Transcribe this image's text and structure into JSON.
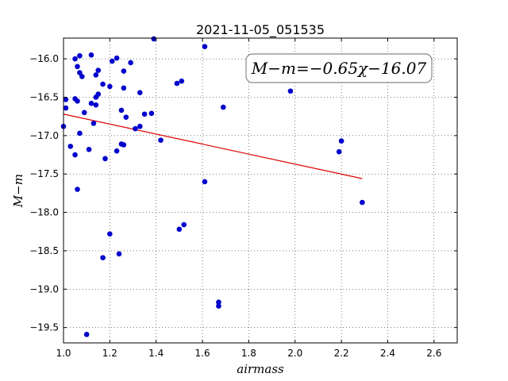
{
  "chart_data": {
    "type": "scatter",
    "title": "2021-11-05_051535",
    "xlabel": "airmass",
    "ylabel": "M−m",
    "xlim": [
      1.0,
      2.7
    ],
    "ylim": [
      -19.7,
      -15.73
    ],
    "y_inverted": true,
    "grid": true,
    "xticks": [
      1.0,
      1.2,
      1.4,
      1.6,
      1.8,
      2.0,
      2.2,
      2.4,
      2.6
    ],
    "xtick_labels": [
      "1.0",
      "1.2",
      "1.4",
      "1.6",
      "1.8",
      "2.0",
      "2.2",
      "2.4",
      "2.6"
    ],
    "yticks": [
      -16.0,
      -16.5,
      -17.0,
      -17.5,
      -18.0,
      -18.5,
      -19.0,
      -19.5
    ],
    "ytick_labels": [
      "−16.0",
      "−16.5",
      "−17.0",
      "−17.5",
      "−18.0",
      "−18.5",
      "−19.0",
      "−19.5"
    ],
    "annotation": "M−m=−0.65χ−16.07",
    "colors": {
      "points": "#0000cc",
      "fit_line": "#dd0000"
    },
    "fit_line": {
      "x": [
        1.0,
        2.29
      ],
      "y": [
        -16.72,
        -17.56
      ]
    },
    "points": [
      {
        "x": 1.0,
        "y": -16.88
      },
      {
        "x": 1.01,
        "y": -16.53
      },
      {
        "x": 1.01,
        "y": -16.64
      },
      {
        "x": 1.03,
        "y": -17.14
      },
      {
        "x": 1.05,
        "y": -16.0
      },
      {
        "x": 1.05,
        "y": -16.52
      },
      {
        "x": 1.05,
        "y": -17.25
      },
      {
        "x": 1.06,
        "y": -16.1
      },
      {
        "x": 1.06,
        "y": -16.55
      },
      {
        "x": 1.06,
        "y": -17.7
      },
      {
        "x": 1.07,
        "y": -15.96
      },
      {
        "x": 1.07,
        "y": -16.18
      },
      {
        "x": 1.07,
        "y": -16.97
      },
      {
        "x": 1.08,
        "y": -16.23
      },
      {
        "x": 1.09,
        "y": -16.7
      },
      {
        "x": 1.1,
        "y": -19.59
      },
      {
        "x": 1.11,
        "y": -17.18
      },
      {
        "x": 1.12,
        "y": -15.95
      },
      {
        "x": 1.12,
        "y": -16.58
      },
      {
        "x": 1.13,
        "y": -16.84
      },
      {
        "x": 1.14,
        "y": -16.6
      },
      {
        "x": 1.14,
        "y": -16.21
      },
      {
        "x": 1.15,
        "y": -16.15
      },
      {
        "x": 1.15,
        "y": -16.46
      },
      {
        "x": 1.14,
        "y": -16.5
      },
      {
        "x": 1.17,
        "y": -18.59
      },
      {
        "x": 1.17,
        "y": -16.33
      },
      {
        "x": 1.18,
        "y": -17.3
      },
      {
        "x": 1.2,
        "y": -18.28
      },
      {
        "x": 1.2,
        "y": -16.36
      },
      {
        "x": 1.21,
        "y": -16.03
      },
      {
        "x": 1.23,
        "y": -17.2
      },
      {
        "x": 1.23,
        "y": -15.99
      },
      {
        "x": 1.24,
        "y": -18.54
      },
      {
        "x": 1.25,
        "y": -16.67
      },
      {
        "x": 1.25,
        "y": -17.11
      },
      {
        "x": 1.26,
        "y": -16.16
      },
      {
        "x": 1.26,
        "y": -16.38
      },
      {
        "x": 1.26,
        "y": -17.12
      },
      {
        "x": 1.27,
        "y": -16.76
      },
      {
        "x": 1.29,
        "y": -16.05
      },
      {
        "x": 1.31,
        "y": -16.91
      },
      {
        "x": 1.33,
        "y": -16.88
      },
      {
        "x": 1.33,
        "y": -16.44
      },
      {
        "x": 1.35,
        "y": -16.72
      },
      {
        "x": 1.38,
        "y": -16.71
      },
      {
        "x": 1.39,
        "y": -15.74
      },
      {
        "x": 1.42,
        "y": -17.06
      },
      {
        "x": 1.49,
        "y": -16.32
      },
      {
        "x": 1.5,
        "y": -18.22
      },
      {
        "x": 1.51,
        "y": -16.29
      },
      {
        "x": 1.52,
        "y": -18.16
      },
      {
        "x": 1.61,
        "y": -17.6
      },
      {
        "x": 1.61,
        "y": -15.84
      },
      {
        "x": 1.67,
        "y": -19.17
      },
      {
        "x": 1.67,
        "y": -19.22
      },
      {
        "x": 1.69,
        "y": -16.63
      },
      {
        "x": 1.98,
        "y": -16.42
      },
      {
        "x": 2.19,
        "y": -17.21
      },
      {
        "x": 2.2,
        "y": -17.07
      },
      {
        "x": 2.29,
        "y": -17.87
      }
    ]
  }
}
